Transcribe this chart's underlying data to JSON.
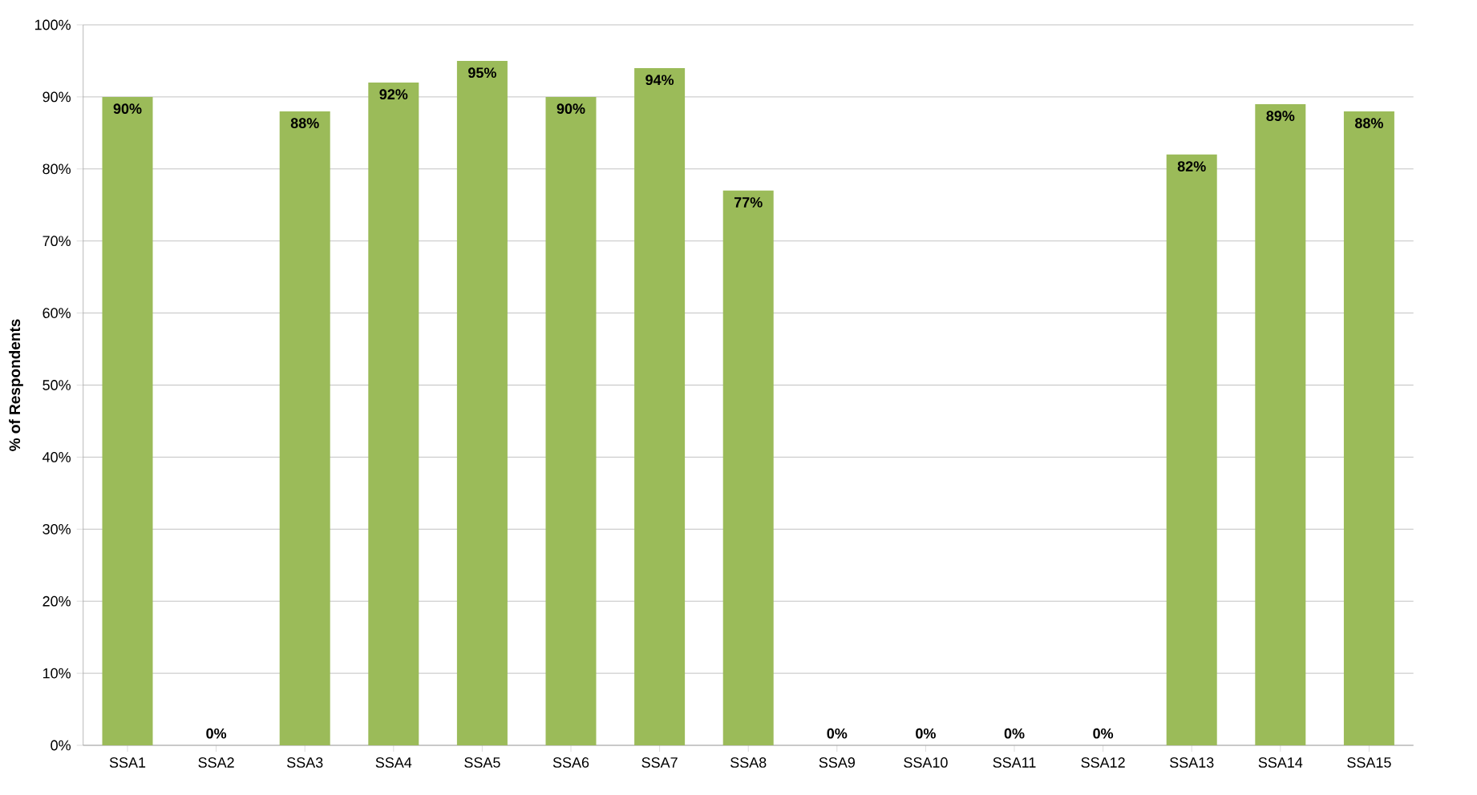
{
  "chart_data": {
    "type": "bar",
    "ylabel": "% of Respondents",
    "categories": [
      "SSA1",
      "SSA2",
      "SSA3",
      "SSA4",
      "SSA5",
      "SSA6",
      "SSA7",
      "SSA8",
      "SSA9",
      "SSA10",
      "SSA11",
      "SSA12",
      "SSA13",
      "SSA14",
      "SSA15"
    ],
    "values": [
      90,
      0,
      88,
      92,
      95,
      90,
      94,
      77,
      0,
      0,
      0,
      0,
      82,
      89,
      88
    ],
    "value_labels": [
      "90%",
      "0%",
      "88%",
      "92%",
      "95%",
      "90%",
      "94%",
      "77%",
      "0%",
      "0%",
      "0%",
      "0%",
      "82%",
      "89%",
      "88%"
    ],
    "color": "#9bbb59",
    "ylim": [
      0,
      100
    ],
    "yticks": [
      {
        "value": 0,
        "label": "0%"
      },
      {
        "value": 10,
        "label": "10%"
      },
      {
        "value": 20,
        "label": "20%"
      },
      {
        "value": 30,
        "label": "30%"
      },
      {
        "value": 40,
        "label": "40%"
      },
      {
        "value": 50,
        "label": "50%"
      },
      {
        "value": 60,
        "label": "60%"
      },
      {
        "value": 70,
        "label": "70%"
      },
      {
        "value": 80,
        "label": "80%"
      },
      {
        "value": 90,
        "label": "90%"
      },
      {
        "value": 100,
        "label": "100%"
      }
    ],
    "grid": "y"
  }
}
